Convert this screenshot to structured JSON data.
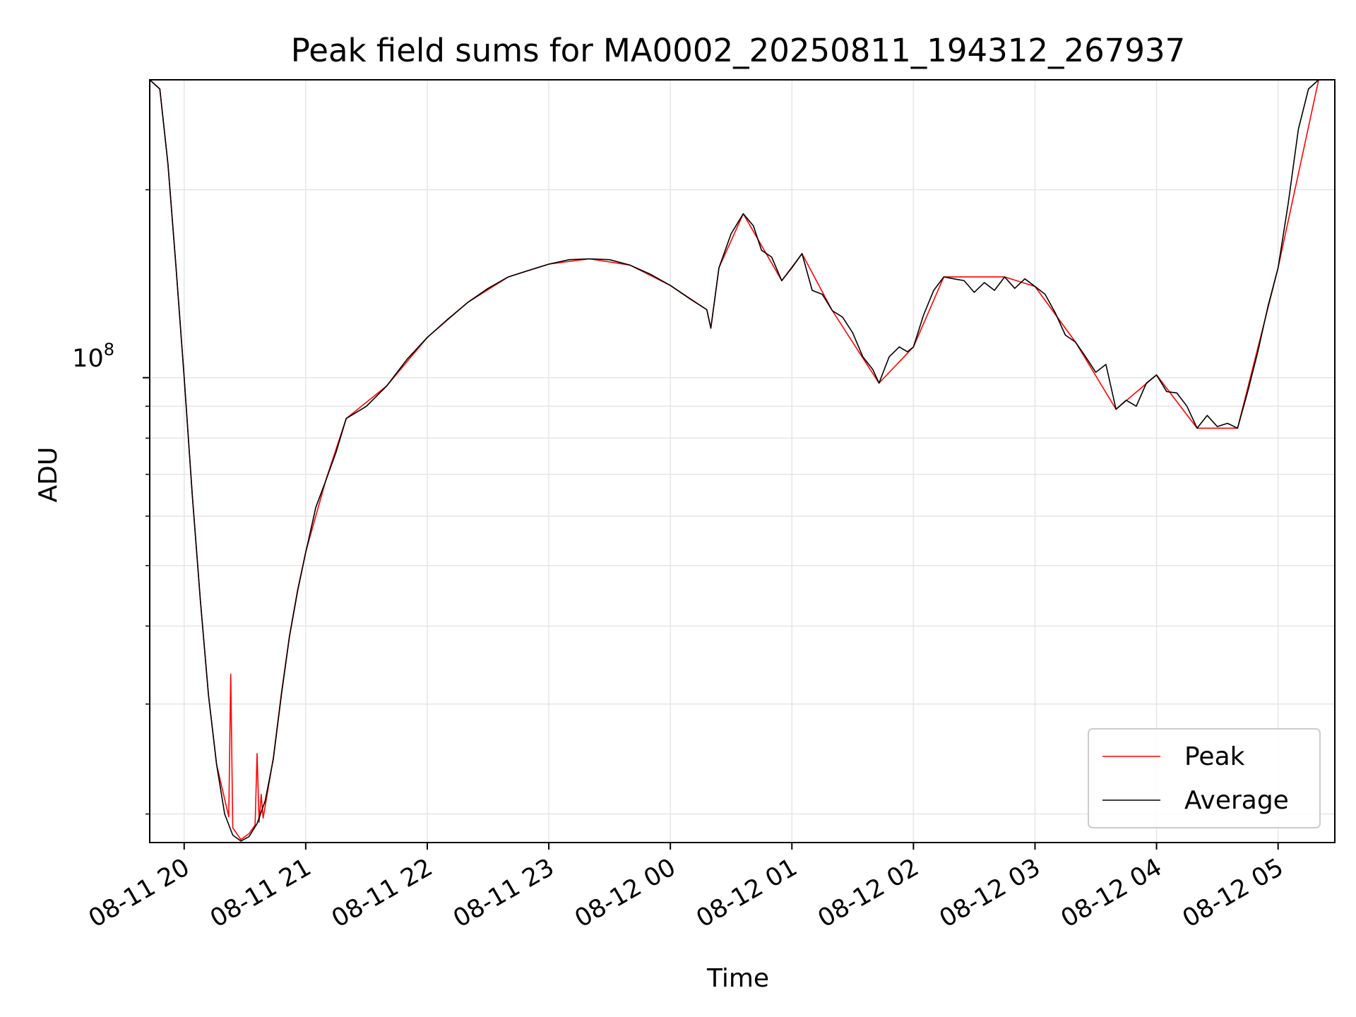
{
  "chart_data": {
    "type": "line",
    "title": "Peak field sums for MA0002_20250811_194312_267937",
    "xlabel": "Time",
    "ylabel": "ADU",
    "x_unit": "datetime (2025-08-11 to 2025-08-12)",
    "yscale": "log",
    "ylim": [
      18000000,
      300000000
    ],
    "y_major_tick_label": "10",
    "y_major_tick_exponent": "8",
    "y_major_tick_value": 100000000,
    "y_minor_ticks": [
      20000000,
      30000000,
      40000000,
      50000000,
      60000000,
      70000000,
      80000000,
      90000000,
      200000000
    ],
    "xlim": [
      "2025-08-11 19:43",
      "2025-08-12 05:28"
    ],
    "x_ticks": [
      {
        "t": "2025-08-11 20:00",
        "label": "08-11 20"
      },
      {
        "t": "2025-08-11 21:00",
        "label": "08-11 21"
      },
      {
        "t": "2025-08-11 22:00",
        "label": "08-11 22"
      },
      {
        "t": "2025-08-11 23:00",
        "label": "08-11 23"
      },
      {
        "t": "2025-08-12 00:00",
        "label": "08-12 00"
      },
      {
        "t": "2025-08-12 01:00",
        "label": "08-12 01"
      },
      {
        "t": "2025-08-12 02:00",
        "label": "08-12 02"
      },
      {
        "t": "2025-08-12 03:00",
        "label": "08-12 03"
      },
      {
        "t": "2025-08-12 04:00",
        "label": "08-12 04"
      },
      {
        "t": "2025-08-12 05:00",
        "label": "08-12 05"
      }
    ],
    "grid": true,
    "legend_position": "lower-right",
    "colors": {
      "peak": "#ff0000",
      "average": "#000000",
      "grid": "#e5e5e5"
    },
    "series": [
      {
        "name": "Average",
        "points": [
          [
            "2025-08-11 19:43",
            300000000
          ],
          [
            "2025-08-11 19:48",
            290000000
          ],
          [
            "2025-08-11 19:52",
            220000000
          ],
          [
            "2025-08-11 19:56",
            150000000
          ],
          [
            "2025-08-11 20:00",
            100000000
          ],
          [
            "2025-08-11 20:04",
            65000000
          ],
          [
            "2025-08-11 20:08",
            44000000
          ],
          [
            "2025-08-11 20:12",
            31000000
          ],
          [
            "2025-08-11 20:16",
            24000000
          ],
          [
            "2025-08-11 20:20",
            20000000
          ],
          [
            "2025-08-11 20:24",
            18500000
          ],
          [
            "2025-08-11 20:28",
            18100000
          ],
          [
            "2025-08-11 20:32",
            18400000
          ],
          [
            "2025-08-11 20:36",
            19300000
          ],
          [
            "2025-08-11 20:40",
            21000000
          ],
          [
            "2025-08-11 20:44",
            24500000
          ],
          [
            "2025-08-11 20:48",
            31000000
          ],
          [
            "2025-08-11 20:52",
            38500000
          ],
          [
            "2025-08-11 20:56",
            45500000
          ],
          [
            "2025-08-11 21:00",
            52500000
          ],
          [
            "2025-08-11 21:05",
            62000000
          ],
          [
            "2025-08-11 21:10",
            68500000
          ],
          [
            "2025-08-11 21:15",
            76000000
          ],
          [
            "2025-08-11 21:20",
            86000000
          ],
          [
            "2025-08-11 21:30",
            90000000
          ],
          [
            "2025-08-11 21:40",
            97000000
          ],
          [
            "2025-08-11 21:50",
            107000000
          ],
          [
            "2025-08-11 22:00",
            116000000
          ],
          [
            "2025-08-11 22:10",
            124000000
          ],
          [
            "2025-08-11 22:20",
            132000000
          ],
          [
            "2025-08-11 22:30",
            139000000
          ],
          [
            "2025-08-11 22:40",
            145000000
          ],
          [
            "2025-08-11 22:50",
            148500000
          ],
          [
            "2025-08-11 23:00",
            152000000
          ],
          [
            "2025-08-11 23:10",
            154500000
          ],
          [
            "2025-08-11 23:20",
            155000000
          ],
          [
            "2025-08-11 23:30",
            154500000
          ],
          [
            "2025-08-11 23:40",
            151500000
          ],
          [
            "2025-08-11 23:50",
            146500000
          ],
          [
            "2025-08-12 00:00",
            140500000
          ],
          [
            "2025-08-12 00:10",
            133500000
          ],
          [
            "2025-08-12 00:18",
            128500000
          ],
          [
            "2025-08-12 00:20",
            120000000
          ],
          [
            "2025-08-12 00:24",
            150000000
          ],
          [
            "2025-08-12 00:30",
            170000000
          ],
          [
            "2025-08-12 00:36",
            183000000
          ],
          [
            "2025-08-12 00:41",
            175000000
          ],
          [
            "2025-08-12 00:45",
            160000000
          ],
          [
            "2025-08-12 00:50",
            156000000
          ],
          [
            "2025-08-12 00:55",
            143000000
          ],
          [
            "2025-08-12 01:00",
            150000000
          ],
          [
            "2025-08-12 01:05",
            158000000
          ],
          [
            "2025-08-12 01:10",
            138000000
          ],
          [
            "2025-08-12 01:15",
            136000000
          ],
          [
            "2025-08-12 01:20",
            128000000
          ],
          [
            "2025-08-12 01:25",
            125000000
          ],
          [
            "2025-08-12 01:30",
            118000000
          ],
          [
            "2025-08-12 01:35",
            108000000
          ],
          [
            "2025-08-12 01:40",
            103000000
          ],
          [
            "2025-08-12 01:43",
            98000000
          ],
          [
            "2025-08-12 01:48",
            108000000
          ],
          [
            "2025-08-12 01:53",
            112000000
          ],
          [
            "2025-08-12 01:57",
            110000000
          ],
          [
            "2025-08-12 02:00",
            112000000
          ],
          [
            "2025-08-12 02:05",
            126000000
          ],
          [
            "2025-08-12 02:10",
            138000000
          ],
          [
            "2025-08-12 02:15",
            145000000
          ],
          [
            "2025-08-12 02:20",
            144000000
          ],
          [
            "2025-08-12 02:25",
            143000000
          ],
          [
            "2025-08-12 02:30",
            137000000
          ],
          [
            "2025-08-12 02:35",
            142000000
          ],
          [
            "2025-08-12 02:40",
            138000000
          ],
          [
            "2025-08-12 02:45",
            145000000
          ],
          [
            "2025-08-12 02:50",
            139000000
          ],
          [
            "2025-08-12 02:55",
            144000000
          ],
          [
            "2025-08-12 03:00",
            140000000
          ],
          [
            "2025-08-12 03:05",
            136000000
          ],
          [
            "2025-08-12 03:10",
            127000000
          ],
          [
            "2025-08-12 03:15",
            117000000
          ],
          [
            "2025-08-12 03:20",
            114000000
          ],
          [
            "2025-08-12 03:25",
            108000000
          ],
          [
            "2025-08-12 03:30",
            102000000
          ],
          [
            "2025-08-12 03:35",
            105000000
          ],
          [
            "2025-08-12 03:40",
            89000000
          ],
          [
            "2025-08-12 03:45",
            92000000
          ],
          [
            "2025-08-12 03:50",
            90000000
          ],
          [
            "2025-08-12 03:55",
            98000000
          ],
          [
            "2025-08-12 04:00",
            101000000
          ],
          [
            "2025-08-12 04:05",
            95000000
          ],
          [
            "2025-08-12 04:10",
            94500000
          ],
          [
            "2025-08-12 04:15",
            90000000
          ],
          [
            "2025-08-12 04:20",
            83000000
          ],
          [
            "2025-08-12 04:25",
            87000000
          ],
          [
            "2025-08-12 04:30",
            83500000
          ],
          [
            "2025-08-12 04:35",
            84500000
          ],
          [
            "2025-08-12 04:40",
            83000000
          ],
          [
            "2025-08-12 04:45",
            95000000
          ],
          [
            "2025-08-12 04:50",
            110000000
          ],
          [
            "2025-08-12 04:55",
            130000000
          ],
          [
            "2025-08-12 05:00",
            150000000
          ],
          [
            "2025-08-12 05:05",
            190000000
          ],
          [
            "2025-08-12 05:10",
            250000000
          ],
          [
            "2025-08-12 05:15",
            290000000
          ],
          [
            "2025-08-12 05:20",
            300000000
          ],
          [
            "2025-08-12 05:28",
            300000000
          ]
        ]
      },
      {
        "name": "Peak",
        "points": [
          [
            "2025-08-11 19:43",
            300000000
          ],
          [
            "2025-08-11 19:48",
            290000000
          ],
          [
            "2025-08-11 19:52",
            220000000
          ],
          [
            "2025-08-11 19:56",
            150000000
          ],
          [
            "2025-08-11 20:00",
            100000000
          ],
          [
            "2025-08-11 20:04",
            65000000
          ],
          [
            "2025-08-11 20:08",
            44000000
          ],
          [
            "2025-08-11 20:12",
            31000000
          ],
          [
            "2025-08-11 20:16",
            24000000
          ],
          [
            "2025-08-11 20:22",
            19800000
          ],
          [
            "2025-08-11 20:23",
            33500000
          ],
          [
            "2025-08-11 20:24",
            19000000
          ],
          [
            "2025-08-11 20:28",
            18200000
          ],
          [
            "2025-08-11 20:32",
            18600000
          ],
          [
            "2025-08-11 20:35",
            19200000
          ],
          [
            "2025-08-11 20:36",
            25000000
          ],
          [
            "2025-08-11 20:37",
            19400000
          ],
          [
            "2025-08-11 20:38",
            21500000
          ],
          [
            "2025-08-11 20:39",
            19700000
          ],
          [
            "2025-08-11 20:44",
            24600000
          ],
          [
            "2025-08-11 20:48",
            31200000
          ],
          [
            "2025-08-11 20:52",
            38600000
          ],
          [
            "2025-08-11 20:56",
            45700000
          ],
          [
            "2025-08-11 21:00",
            52600000
          ],
          [
            "2025-08-11 21:10",
            68600000
          ],
          [
            "2025-08-11 21:20",
            86000000
          ],
          [
            "2025-08-11 21:40",
            97000000
          ],
          [
            "2025-08-11 22:00",
            116000000
          ],
          [
            "2025-08-11 22:20",
            132000000
          ],
          [
            "2025-08-11 22:40",
            145000000
          ],
          [
            "2025-08-11 23:00",
            152000000
          ],
          [
            "2025-08-11 23:20",
            155000000
          ],
          [
            "2025-08-11 23:40",
            151500000
          ],
          [
            "2025-08-12 00:00",
            140500000
          ],
          [
            "2025-08-12 00:18",
            128500000
          ],
          [
            "2025-08-12 00:20",
            120000000
          ],
          [
            "2025-08-12 00:24",
            150000000
          ],
          [
            "2025-08-12 00:36",
            183000000
          ],
          [
            "2025-08-12 00:55",
            143000000
          ],
          [
            "2025-08-12 01:05",
            158000000
          ],
          [
            "2025-08-12 01:20",
            128000000
          ],
          [
            "2025-08-12 01:43",
            98000000
          ],
          [
            "2025-08-12 02:00",
            112000000
          ],
          [
            "2025-08-12 02:15",
            145000000
          ],
          [
            "2025-08-12 02:45",
            145000000
          ],
          [
            "2025-08-12 03:00",
            140000000
          ],
          [
            "2025-08-12 03:20",
            114000000
          ],
          [
            "2025-08-12 03:40",
            89000000
          ],
          [
            "2025-08-12 04:00",
            101000000
          ],
          [
            "2025-08-12 04:20",
            83000000
          ],
          [
            "2025-08-12 04:40",
            83000000
          ],
          [
            "2025-08-12 05:00",
            150000000
          ],
          [
            "2025-08-12 05:20",
            300000000
          ],
          [
            "2025-08-12 05:28",
            300000000
          ]
        ]
      }
    ]
  }
}
